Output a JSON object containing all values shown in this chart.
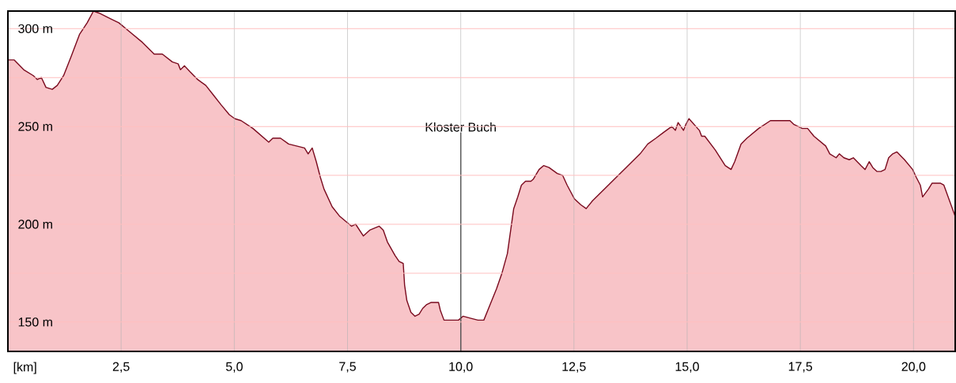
{
  "chart_data": {
    "type": "area",
    "xlabel": "[km]",
    "color": "#7a0a1e",
    "grid": true,
    "xlim": [
      0,
      20.92
    ],
    "ylim": [
      135,
      309
    ],
    "xticks": [
      {
        "value": 2.5,
        "label": "2,5"
      },
      {
        "value": 5,
        "label": "5,0"
      },
      {
        "value": 7.5,
        "label": "7,5"
      },
      {
        "value": 10,
        "label": "10,0"
      },
      {
        "value": 12.5,
        "label": "12,5"
      },
      {
        "value": 15,
        "label": "15,0"
      },
      {
        "value": 17.5,
        "label": "17,5"
      },
      {
        "value": 20,
        "label": "20,0"
      }
    ],
    "yticks": [
      {
        "value": 150,
        "label": "150 m"
      },
      {
        "value": 175,
        "label": null
      },
      {
        "value": 200,
        "label": "200 m"
      },
      {
        "value": 225,
        "label": null
      },
      {
        "value": 250,
        "label": "250 m"
      },
      {
        "value": 275,
        "label": null
      },
      {
        "value": 300,
        "label": "300 m"
      }
    ],
    "ref_lines": [
      {
        "axis": "x",
        "value": 10,
        "label": "Kloster Buch"
      }
    ],
    "x": [
      0.0,
      0.14,
      0.35,
      0.56,
      0.65,
      0.74,
      0.84,
      0.98,
      1.09,
      1.23,
      1.4,
      1.58,
      1.75,
      1.89,
      2.01,
      2.27,
      2.45,
      2.71,
      2.97,
      3.23,
      3.41,
      3.63,
      3.76,
      3.81,
      3.9,
      4.02,
      4.19,
      4.37,
      4.54,
      4.71,
      4.89,
      5.01,
      5.15,
      5.41,
      5.76,
      5.85,
      6.02,
      6.2,
      6.55,
      6.63,
      6.72,
      6.81,
      6.9,
      6.98,
      7.16,
      7.33,
      7.59,
      7.68,
      7.85,
      7.99,
      8.2,
      8.29,
      8.38,
      8.55,
      8.64,
      8.73,
      8.76,
      8.81,
      8.9,
      8.99,
      9.08,
      9.16,
      9.25,
      9.34,
      9.51,
      9.55,
      9.63,
      9.77,
      9.95,
      10.05,
      10.21,
      10.38,
      10.51,
      10.65,
      10.79,
      10.91,
      11.03,
      11.17,
      11.26,
      11.34,
      11.43,
      11.55,
      11.6,
      11.73,
      11.83,
      11.95,
      12.13,
      12.25,
      12.35,
      12.51,
      12.65,
      12.77,
      12.91,
      13.26,
      13.61,
      13.96,
      14.13,
      14.31,
      14.48,
      14.66,
      14.74,
      14.8,
      14.92,
      14.97,
      15.04,
      15.27,
      15.32,
      15.39,
      15.62,
      15.84,
      15.97,
      16.05,
      16.19,
      16.32,
      16.58,
      16.84,
      17.1,
      17.27,
      17.36,
      17.54,
      17.66,
      17.8,
      18.06,
      18.15,
      18.29,
      18.36,
      18.46,
      18.58,
      18.67,
      18.84,
      18.93,
      19.02,
      19.1,
      19.19,
      19.28,
      19.37,
      19.45,
      19.54,
      19.63,
      19.8,
      19.98,
      20.06,
      20.15,
      20.2,
      20.33,
      20.41,
      20.59,
      20.67,
      20.92
    ],
    "values": [
      284,
      284,
      279,
      276,
      274,
      275,
      270,
      269,
      271,
      276,
      286,
      297,
      303,
      309,
      308,
      305,
      303,
      298,
      293,
      287,
      287,
      283,
      282,
      279,
      281,
      278,
      274,
      271,
      266,
      261,
      256,
      254,
      253,
      249,
      242,
      244,
      244,
      241,
      239,
      236,
      239,
      232,
      224,
      218,
      209,
      204,
      199,
      200,
      194,
      197,
      199,
      197,
      191,
      184,
      181,
      180,
      169,
      161,
      155,
      153,
      154,
      157,
      159,
      160,
      160,
      156,
      151,
      151,
      151,
      153,
      152,
      151,
      151,
      159,
      167,
      175,
      185,
      208,
      214,
      220,
      222,
      222,
      223,
      228,
      230,
      229,
      226,
      225,
      220,
      213,
      210,
      208,
      212,
      220,
      228,
      236,
      241,
      244,
      247,
      250,
      248,
      252,
      248,
      251,
      254,
      248,
      245,
      245,
      238,
      230,
      228,
      232,
      241,
      244,
      249,
      253,
      253,
      253,
      251,
      249,
      249,
      245,
      240,
      236,
      234,
      236,
      234,
      233,
      234,
      230,
      228,
      232,
      229,
      227,
      227,
      228,
      234,
      236,
      237,
      233,
      228,
      224,
      220,
      214,
      218,
      221,
      221,
      220,
      204
    ]
  }
}
